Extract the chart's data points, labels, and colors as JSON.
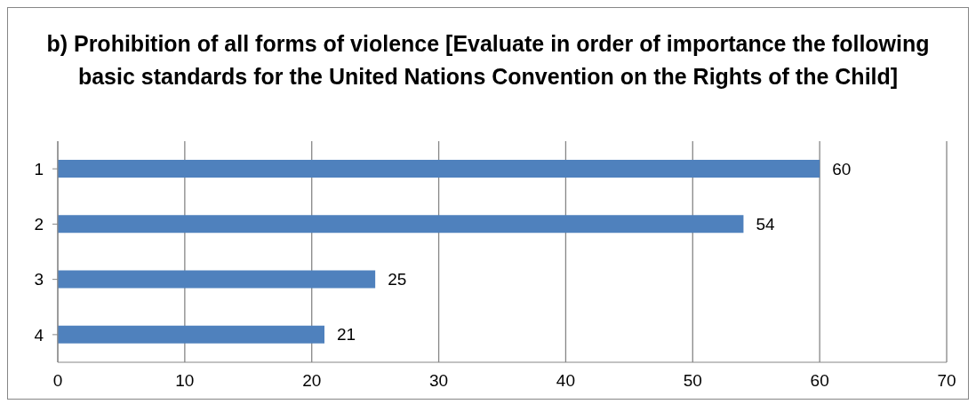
{
  "chart_data": {
    "type": "bar",
    "orientation": "horizontal",
    "title": "b) Prohibition of all forms of violence [Evaluate in order of importance the following basic standards for the United Nations Convention on the Rights of the Child]",
    "categories": [
      "1",
      "2",
      "3",
      "4"
    ],
    "values": [
      60,
      54,
      25,
      21
    ],
    "color": "#4f81bd",
    "xlim": [
      0,
      70
    ],
    "xticks": [
      0,
      10,
      20,
      30,
      40,
      50,
      60,
      70
    ],
    "grid": "x",
    "data_labels": true
  }
}
